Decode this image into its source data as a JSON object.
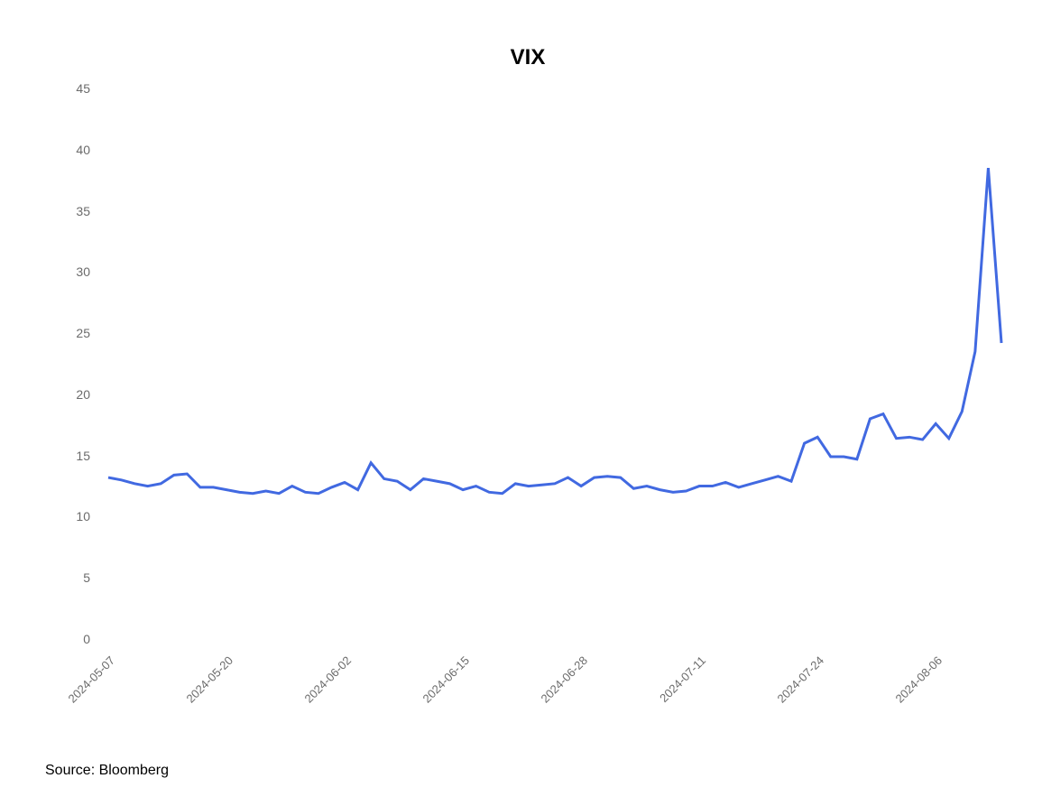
{
  "chart": {
    "type": "line",
    "title": "VIX",
    "title_fontsize": 24,
    "title_fontweight": 700,
    "background_color": "#ffffff",
    "line_color": "#4169e1",
    "line_width": 3,
    "axis_label_color": "#6b6b6b",
    "axis_label_fontsize": 14,
    "x_tick_rotation": -45,
    "ylim": [
      0,
      45
    ],
    "ytick_step": 5,
    "y_ticks": [
      0,
      5,
      10,
      15,
      20,
      25,
      30,
      35,
      40,
      45
    ],
    "x_tick_labels": [
      "2024-05-07",
      "2024-05-20",
      "2024-06-02",
      "2024-06-15",
      "2024-06-28",
      "2024-07-11",
      "2024-07-24",
      "2024-08-06"
    ],
    "x_tick_indices": [
      0,
      9,
      18,
      27,
      36,
      45,
      54,
      63
    ],
    "data": {
      "values": [
        13.2,
        13.0,
        12.7,
        12.5,
        12.7,
        13.4,
        13.5,
        12.4,
        12.4,
        12.2,
        12.0,
        11.9,
        12.1,
        11.9,
        12.5,
        12.0,
        11.9,
        12.4,
        12.8,
        12.2,
        14.4,
        13.1,
        12.9,
        12.2,
        13.1,
        12.9,
        12.7,
        12.2,
        12.5,
        12.0,
        11.9,
        12.7,
        12.5,
        12.6,
        12.7,
        13.2,
        12.5,
        13.2,
        13.3,
        13.2,
        12.3,
        12.5,
        12.2,
        12.0,
        12.1,
        12.5,
        12.5,
        12.8,
        12.4,
        12.7,
        13.0,
        13.3,
        12.9,
        16.0,
        16.5,
        14.9,
        14.9,
        14.7,
        18.0,
        18.4,
        16.4,
        16.5,
        16.3,
        17.6,
        16.4,
        18.6,
        23.5,
        38.5,
        24.2
      ]
    }
  },
  "source_note": "Source: Bloomberg"
}
